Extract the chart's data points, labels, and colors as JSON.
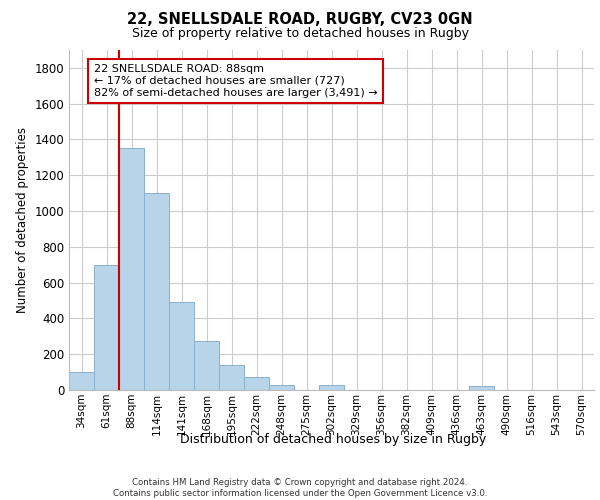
{
  "title_line1": "22, SNELLSDALE ROAD, RUGBY, CV23 0GN",
  "title_line2": "Size of property relative to detached houses in Rugby",
  "xlabel": "Distribution of detached houses by size in Rugby",
  "ylabel": "Number of detached properties",
  "footer_line1": "Contains HM Land Registry data © Crown copyright and database right 2024.",
  "footer_line2": "Contains public sector information licensed under the Open Government Licence v3.0.",
  "categories": [
    "34sqm",
    "61sqm",
    "88sqm",
    "114sqm",
    "141sqm",
    "168sqm",
    "195sqm",
    "222sqm",
    "248sqm",
    "275sqm",
    "302sqm",
    "329sqm",
    "356sqm",
    "382sqm",
    "409sqm",
    "436sqm",
    "463sqm",
    "490sqm",
    "516sqm",
    "543sqm",
    "570sqm"
  ],
  "values": [
    100,
    700,
    1350,
    1100,
    490,
    275,
    140,
    70,
    30,
    0,
    30,
    0,
    0,
    0,
    0,
    0,
    20,
    0,
    0,
    0,
    0
  ],
  "bar_color": "#b8d4e8",
  "bar_edge_color": "#8ab0cc",
  "ylim": [
    0,
    1900
  ],
  "yticks": [
    0,
    200,
    400,
    600,
    800,
    1000,
    1200,
    1400,
    1600,
    1800
  ],
  "vline_x_index": 2,
  "vline_color": "#cc0000",
  "annotation_text": "22 SNELLSDALE ROAD: 88sqm\n← 17% of detached houses are smaller (727)\n82% of semi-detached houses are larger (3,491) →",
  "annotation_box_color": "#cc0000",
  "background_color": "#ffffff",
  "grid_color": "#cccccc",
  "fig_width": 6.0,
  "fig_height": 5.0,
  "fig_dpi": 100
}
